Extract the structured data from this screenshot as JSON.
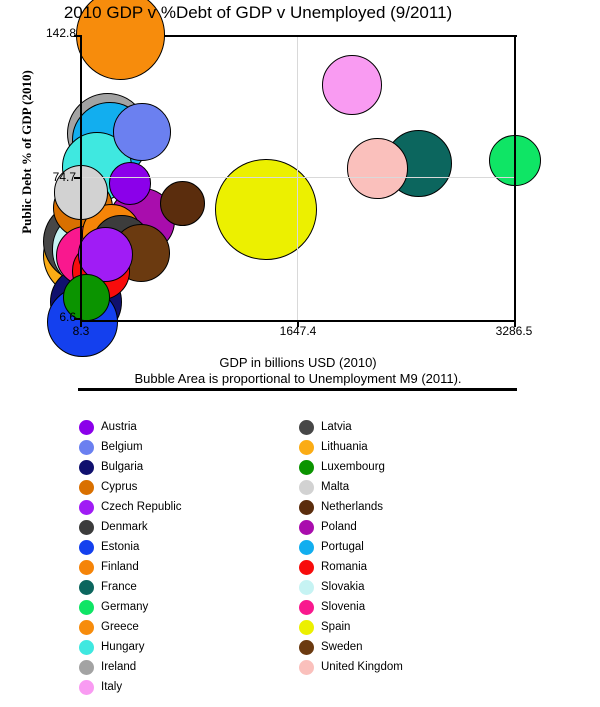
{
  "title": "2010 GDP v %Debt of GDP v Unemployed (9/2011)",
  "axes": {
    "y_label": "Public Debt % of GDP (2010)",
    "x_label": "GDP in billions USD (2010)",
    "size_caption": "Bubble Area is proportional to Unemployment M9 (2011).",
    "y_ticks": {
      "max": "142.8",
      "mid": "74.7",
      "min": "6.6"
    },
    "x_ticks": {
      "min": "8.3",
      "mid": "1647.4",
      "max": "3286.5"
    }
  },
  "chart_data": {
    "type": "scatter",
    "variant": "bubble",
    "title": "2010 GDP v %Debt of GDP v Unemployed (9/2011)",
    "xlabel": "GDP in billions USD (2010)",
    "ylabel": "Public Debt % of GDP (2010)",
    "size_encoding": "Bubble area proportional to unemployment rate, M9 2011",
    "x_range": [
      8.3,
      3286.5
    ],
    "y_range": [
      6.6,
      142.8
    ],
    "x_gridlines": [
      1647.4
    ],
    "y_gridlines": [
      74.7
    ],
    "grid_on": true,
    "legend_position": "bottom-two-columns",
    "points": [
      {
        "name": "Austria",
        "gdp": 377.0,
        "debt_pct": 72.3,
        "unemployment": 3.9,
        "color": "#8b00ea"
      },
      {
        "name": "Belgium",
        "gdp": 467.0,
        "debt_pct": 96.8,
        "unemployment": 7.3,
        "color": "#6b80f0"
      },
      {
        "name": "Bulgaria",
        "gdp": 47.7,
        "debt_pct": 16.2,
        "unemployment": 11.4,
        "color": "#10106e"
      },
      {
        "name": "Cyprus",
        "gdp": 23.1,
        "debt_pct": 60.8,
        "unemployment": 7.9,
        "color": "#d97000"
      },
      {
        "name": "Czech Republic",
        "gdp": 192.0,
        "debt_pct": 38.5,
        "unemployment": 6.7,
        "color": "#a01cf5"
      },
      {
        "name": "Denmark",
        "gdp": 312.0,
        "debt_pct": 43.6,
        "unemployment": 7.6,
        "color": "#3c3c3c"
      },
      {
        "name": "Estonia",
        "gdp": 19.2,
        "debt_pct": 6.6,
        "unemployment": 10.9,
        "color": "#1440ee"
      },
      {
        "name": "Finland",
        "gdp": 239.0,
        "debt_pct": 48.4,
        "unemployment": 7.8,
        "color": "#f58408"
      },
      {
        "name": "France",
        "gdp": 2560.0,
        "debt_pct": 81.7,
        "unemployment": 9.9,
        "color": "#0c665e"
      },
      {
        "name": "Germany",
        "gdp": 3286.5,
        "debt_pct": 83.2,
        "unemployment": 5.9,
        "color": "#0fe565"
      },
      {
        "name": "Greece",
        "gdp": 305.0,
        "debt_pct": 142.8,
        "unemployment": 17.6,
        "color": "#f78c0c"
      },
      {
        "name": "Hungary",
        "gdp": 129.0,
        "debt_pct": 80.2,
        "unemployment": 10.9,
        "color": "#3fe8e0"
      },
      {
        "name": "Ireland",
        "gdp": 206.0,
        "debt_pct": 96.2,
        "unemployment": 14.5,
        "color": "#a3a3a3"
      },
      {
        "name": "Italy",
        "gdp": 2055.0,
        "debt_pct": 119.0,
        "unemployment": 8.0,
        "color": "#f99bf2"
      },
      {
        "name": "Latvia",
        "gdp": 24.0,
        "debt_pct": 44.7,
        "unemployment": 14.4,
        "color": "#474747"
      },
      {
        "name": "Lithuania",
        "gdp": 36.3,
        "debt_pct": 38.2,
        "unemployment": 15.3,
        "color": "#fbac15"
      },
      {
        "name": "Luxembourg",
        "gdp": 52.4,
        "debt_pct": 18.4,
        "unemployment": 4.8,
        "color": "#0b9400"
      },
      {
        "name": "Malta",
        "gdp": 8.3,
        "debt_pct": 68.0,
        "unemployment": 6.5,
        "color": "#d2d2d2"
      },
      {
        "name": "Netherlands",
        "gdp": 774.0,
        "debt_pct": 62.7,
        "unemployment": 4.4,
        "color": "#5b2d0d"
      },
      {
        "name": "Poland",
        "gdp": 469.0,
        "debt_pct": 54.8,
        "unemployment": 9.4,
        "color": "#a90dad"
      },
      {
        "name": "Portugal",
        "gdp": 229.0,
        "debt_pct": 93.0,
        "unemployment": 12.8,
        "color": "#12aeef"
      },
      {
        "name": "Romania",
        "gdp": 161.6,
        "debt_pct": 30.8,
        "unemployment": 7.3,
        "color": "#f80c0c"
      },
      {
        "name": "Slovakia",
        "gdp": 87.1,
        "debt_pct": 41.0,
        "unemployment": 13.4,
        "color": "#c6f3f3"
      },
      {
        "name": "Slovenia",
        "gdp": 47.7,
        "debt_pct": 38.0,
        "unemployment": 7.9,
        "color": "#f9188e"
      },
      {
        "name": "Spain",
        "gdp": 1407.0,
        "debt_pct": 60.1,
        "unemployment": 22.6,
        "color": "#ecf000"
      },
      {
        "name": "Sweden",
        "gdp": 458.0,
        "debt_pct": 39.4,
        "unemployment": 7.4,
        "color": "#6b3a10"
      },
      {
        "name": "United Kingdom",
        "gdp": 2250.0,
        "debt_pct": 79.6,
        "unemployment": 8.1,
        "color": "#fac0bc"
      }
    ]
  },
  "legend": {
    "items": [
      {
        "label": "Austria",
        "color": "#8b00ea"
      },
      {
        "label": "Belgium",
        "color": "#6b80f0"
      },
      {
        "label": "Bulgaria",
        "color": "#10106e"
      },
      {
        "label": "Cyprus",
        "color": "#d97000"
      },
      {
        "label": "Czech Republic",
        "color": "#a01cf5"
      },
      {
        "label": "Denmark",
        "color": "#3c3c3c"
      },
      {
        "label": "Estonia",
        "color": "#1440ee"
      },
      {
        "label": "Finland",
        "color": "#f58408"
      },
      {
        "label": "France",
        "color": "#0c665e"
      },
      {
        "label": "Germany",
        "color": "#0fe565"
      },
      {
        "label": "Greece",
        "color": "#f78c0c"
      },
      {
        "label": "Hungary",
        "color": "#3fe8e0"
      },
      {
        "label": "Ireland",
        "color": "#a3a3a3"
      },
      {
        "label": "Italy",
        "color": "#f99bf2"
      },
      {
        "label": "Latvia",
        "color": "#474747"
      },
      {
        "label": "Lithuania",
        "color": "#fbac15"
      },
      {
        "label": "Luxembourg",
        "color": "#0b9400"
      },
      {
        "label": "Malta",
        "color": "#d2d2d2"
      },
      {
        "label": "Netherlands",
        "color": "#5b2d0d"
      },
      {
        "label": "Poland",
        "color": "#a90dad"
      },
      {
        "label": "Portugal",
        "color": "#12aeef"
      },
      {
        "label": "Romania",
        "color": "#f80c0c"
      },
      {
        "label": "Slovakia",
        "color": "#c6f3f3"
      },
      {
        "label": "Slovenia",
        "color": "#f9188e"
      },
      {
        "label": "Spain",
        "color": "#ecf000"
      },
      {
        "label": "Sweden",
        "color": "#6b3a10"
      },
      {
        "label": "United Kingdom",
        "color": "#fac0bc"
      }
    ]
  },
  "colors": {
    "frame": "#000000",
    "grid": "#d9d9d9",
    "background": "#ffffff"
  }
}
